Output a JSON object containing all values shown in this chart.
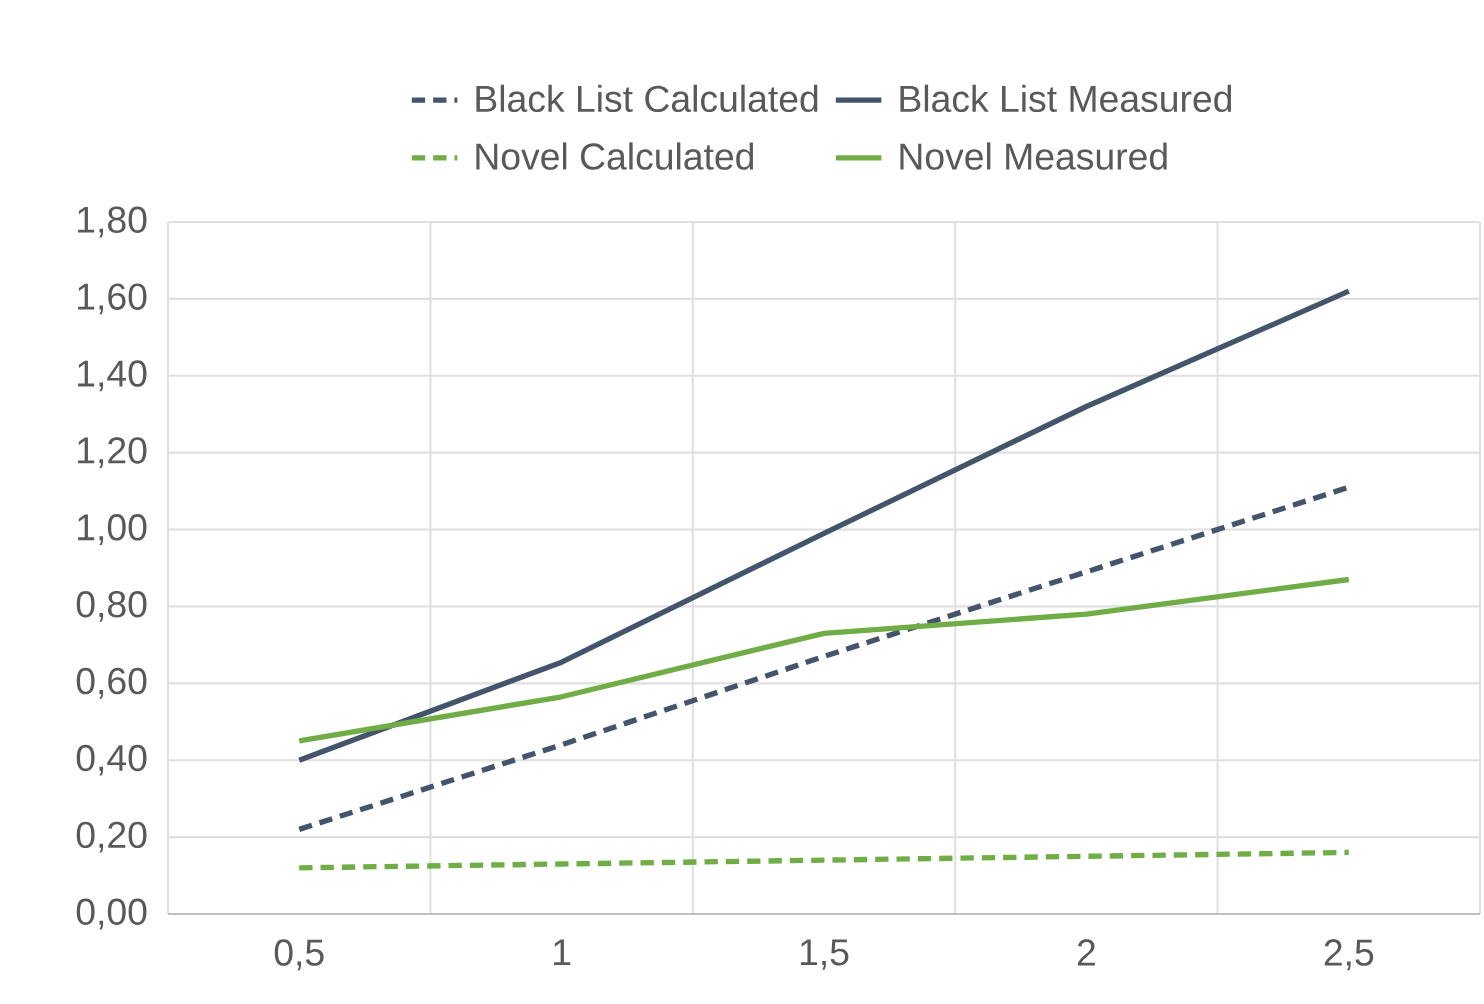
{
  "chart_data": {
    "type": "line",
    "categories": [
      "0,5",
      "1",
      "1,5",
      "2",
      "2,5"
    ],
    "series": [
      {
        "name": "Black List Calculated",
        "color": "#44546a",
        "line_style": "dashed",
        "values": [
          0.22,
          0.44,
          0.67,
          0.89,
          1.11
        ]
      },
      {
        "name": "Black List Measured",
        "color": "#44546a",
        "line_style": "solid",
        "values": [
          0.4,
          0.655,
          0.99,
          1.32,
          1.62
        ]
      },
      {
        "name": "Novel Calculated",
        "color": "#70ad47",
        "line_style": "dashed",
        "values": [
          0.12,
          0.13,
          0.14,
          0.15,
          0.16
        ]
      },
      {
        "name": "Novel Measured",
        "color": "#70ad47",
        "line_style": "solid",
        "values": [
          0.45,
          0.565,
          0.73,
          0.78,
          0.87
        ]
      }
    ],
    "ylim": [
      0,
      1.8
    ],
    "yticks": [
      {
        "value": 0,
        "label": "0,00"
      },
      {
        "value": 0.2,
        "label": "0,20"
      },
      {
        "value": 0.4,
        "label": "0,40"
      },
      {
        "value": 0.6,
        "label": "0,60"
      },
      {
        "value": 0.8,
        "label": "0,80"
      },
      {
        "value": 1.0,
        "label": "1,00"
      },
      {
        "value": 1.2,
        "label": "1,20"
      },
      {
        "value": 1.4,
        "label": "1,40"
      },
      {
        "value": 1.6,
        "label": "1,60"
      },
      {
        "value": 1.8,
        "label": "1,80"
      }
    ],
    "grid": true,
    "legend": "top",
    "marker": "none"
  }
}
